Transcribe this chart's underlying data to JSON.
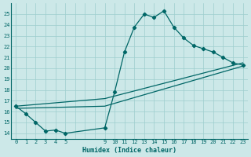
{
  "xlabel": "Humidex (Indice chaleur)",
  "background_color": "#cce8e8",
  "grid_color": "#9ecece",
  "line_color": "#006666",
  "xlim": [
    -0.5,
    23.5
  ],
  "ylim": [
    13.5,
    26.0
  ],
  "yticks": [
    14,
    15,
    16,
    17,
    18,
    19,
    20,
    21,
    22,
    23,
    24,
    25
  ],
  "xticks": [
    0,
    1,
    2,
    3,
    4,
    5,
    9,
    10,
    11,
    12,
    13,
    14,
    15,
    16,
    17,
    18,
    19,
    20,
    21,
    22,
    23
  ],
  "series_x": [
    0,
    1,
    2,
    3,
    4,
    5,
    9,
    10,
    11,
    12,
    13,
    14,
    15,
    16,
    17,
    18,
    19,
    20,
    21,
    22,
    23
  ],
  "series_y": [
    16.5,
    15.8,
    15.0,
    14.2,
    14.3,
    14.0,
    14.5,
    17.8,
    21.5,
    23.8,
    25.0,
    24.7,
    25.3,
    23.8,
    22.8,
    22.1,
    21.8,
    21.5,
    21.0,
    20.5,
    20.3
  ],
  "trend1_x": [
    0,
    9,
    23
  ],
  "trend1_y": [
    16.5,
    17.2,
    20.5
  ],
  "trend2_x": [
    0,
    9,
    23
  ],
  "trend2_y": [
    16.3,
    16.5,
    20.2
  ]
}
